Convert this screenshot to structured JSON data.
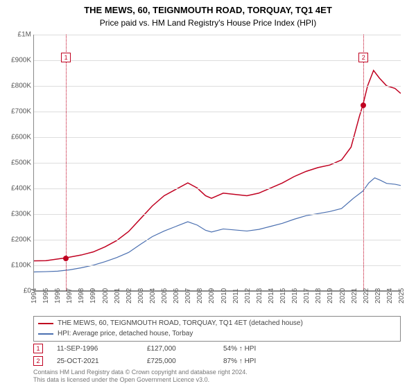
{
  "title": "THE MEWS, 60, TEIGNMOUTH ROAD, TORQUAY, TQ1 4ET",
  "subtitle": "Price paid vs. HM Land Registry's House Price Index (HPI)",
  "chart": {
    "type": "line",
    "background_color": "#ffffff",
    "grid_color": "#dddddd",
    "axis_color": "#888888",
    "x": {
      "min": 1994,
      "max": 2025,
      "ticks": [
        1994,
        1995,
        1996,
        1997,
        1998,
        1999,
        2000,
        2001,
        2002,
        2003,
        2004,
        2005,
        2006,
        2007,
        2008,
        2009,
        2010,
        2011,
        2012,
        2013,
        2014,
        2015,
        2016,
        2017,
        2018,
        2019,
        2020,
        2021,
        2022,
        2023,
        2024,
        2025
      ],
      "label_fontsize": 10,
      "label_color": "#555555"
    },
    "y": {
      "min": 0,
      "max": 1000000,
      "ticks": [
        0,
        100000,
        200000,
        300000,
        400000,
        500000,
        600000,
        700000,
        800000,
        900000,
        1000000
      ],
      "tick_labels": [
        "£0",
        "£100K",
        "£200K",
        "£300K",
        "£400K",
        "£500K",
        "£600K",
        "£700K",
        "£800K",
        "£900K",
        "£1M"
      ],
      "label_fontsize": 10,
      "label_color": "#555555"
    },
    "series": [
      {
        "name": "THE MEWS, 60, TEIGNMOUTH ROAD, TORQUAY, TQ1 4ET (detached house)",
        "color": "#c00020",
        "line_width": 1.5,
        "points": [
          [
            1994,
            115000
          ],
          [
            1995,
            116000
          ],
          [
            1996.7,
            127000
          ],
          [
            1998,
            138000
          ],
          [
            1999,
            150000
          ],
          [
            2000,
            170000
          ],
          [
            2001,
            195000
          ],
          [
            2002,
            230000
          ],
          [
            2003,
            280000
          ],
          [
            2004,
            330000
          ],
          [
            2005,
            370000
          ],
          [
            2006,
            395000
          ],
          [
            2007,
            420000
          ],
          [
            2007.8,
            400000
          ],
          [
            2008.5,
            370000
          ],
          [
            2009,
            360000
          ],
          [
            2010,
            380000
          ],
          [
            2011,
            375000
          ],
          [
            2012,
            370000
          ],
          [
            2013,
            380000
          ],
          [
            2014,
            400000
          ],
          [
            2015,
            420000
          ],
          [
            2016,
            445000
          ],
          [
            2017,
            465000
          ],
          [
            2018,
            480000
          ],
          [
            2019,
            490000
          ],
          [
            2020,
            510000
          ],
          [
            2020.8,
            560000
          ],
          [
            2021.5,
            680000
          ],
          [
            2021.8,
            725000
          ],
          [
            2022.2,
            800000
          ],
          [
            2022.7,
            860000
          ],
          [
            2023.2,
            830000
          ],
          [
            2023.8,
            800000
          ],
          [
            2024.5,
            790000
          ],
          [
            2025,
            770000
          ]
        ]
      },
      {
        "name": "HPI: Average price, detached house, Torbay",
        "color": "#4a6fb0",
        "line_width": 1.2,
        "points": [
          [
            1994,
            72000
          ],
          [
            1995,
            73000
          ],
          [
            1996,
            75000
          ],
          [
            1997,
            80000
          ],
          [
            1998,
            88000
          ],
          [
            1999,
            98000
          ],
          [
            2000,
            112000
          ],
          [
            2001,
            128000
          ],
          [
            2002,
            148000
          ],
          [
            2003,
            180000
          ],
          [
            2004,
            210000
          ],
          [
            2005,
            232000
          ],
          [
            2006,
            250000
          ],
          [
            2007,
            268000
          ],
          [
            2007.8,
            255000
          ],
          [
            2008.5,
            235000
          ],
          [
            2009,
            228000
          ],
          [
            2010,
            240000
          ],
          [
            2011,
            236000
          ],
          [
            2012,
            232000
          ],
          [
            2013,
            238000
          ],
          [
            2014,
            250000
          ],
          [
            2015,
            262000
          ],
          [
            2016,
            278000
          ],
          [
            2017,
            292000
          ],
          [
            2018,
            300000
          ],
          [
            2019,
            308000
          ],
          [
            2020,
            320000
          ],
          [
            2021,
            360000
          ],
          [
            2021.8,
            388000
          ],
          [
            2022.3,
            420000
          ],
          [
            2022.8,
            440000
          ],
          [
            2023.3,
            430000
          ],
          [
            2023.8,
            418000
          ],
          [
            2024.5,
            415000
          ],
          [
            2025,
            410000
          ]
        ]
      }
    ],
    "markers": [
      {
        "id": "1",
        "x": 1996.7,
        "y": 127000,
        "box_y": 910000,
        "line_color": "#c00020"
      },
      {
        "id": "2",
        "x": 2021.8,
        "y": 725000,
        "box_y": 910000,
        "line_color": "#c00020"
      }
    ]
  },
  "legend": {
    "border_color": "#888888",
    "items": [
      {
        "color": "#c00020",
        "label": "THE MEWS, 60, TEIGNMOUTH ROAD, TORQUAY, TQ1 4ET (detached house)"
      },
      {
        "color": "#4a6fb0",
        "label": "HPI: Average price, detached house, Torbay"
      }
    ]
  },
  "events": [
    {
      "id": "1",
      "date": "11-SEP-1996",
      "price": "£127,000",
      "hpi": "54% ↑ HPI"
    },
    {
      "id": "2",
      "date": "25-OCT-2021",
      "price": "£725,000",
      "hpi": "87% ↑ HPI"
    }
  ],
  "footer_line1": "Contains HM Land Registry data © Crown copyright and database right 2024.",
  "footer_line2": "This data is licensed under the Open Government Licence v3.0."
}
